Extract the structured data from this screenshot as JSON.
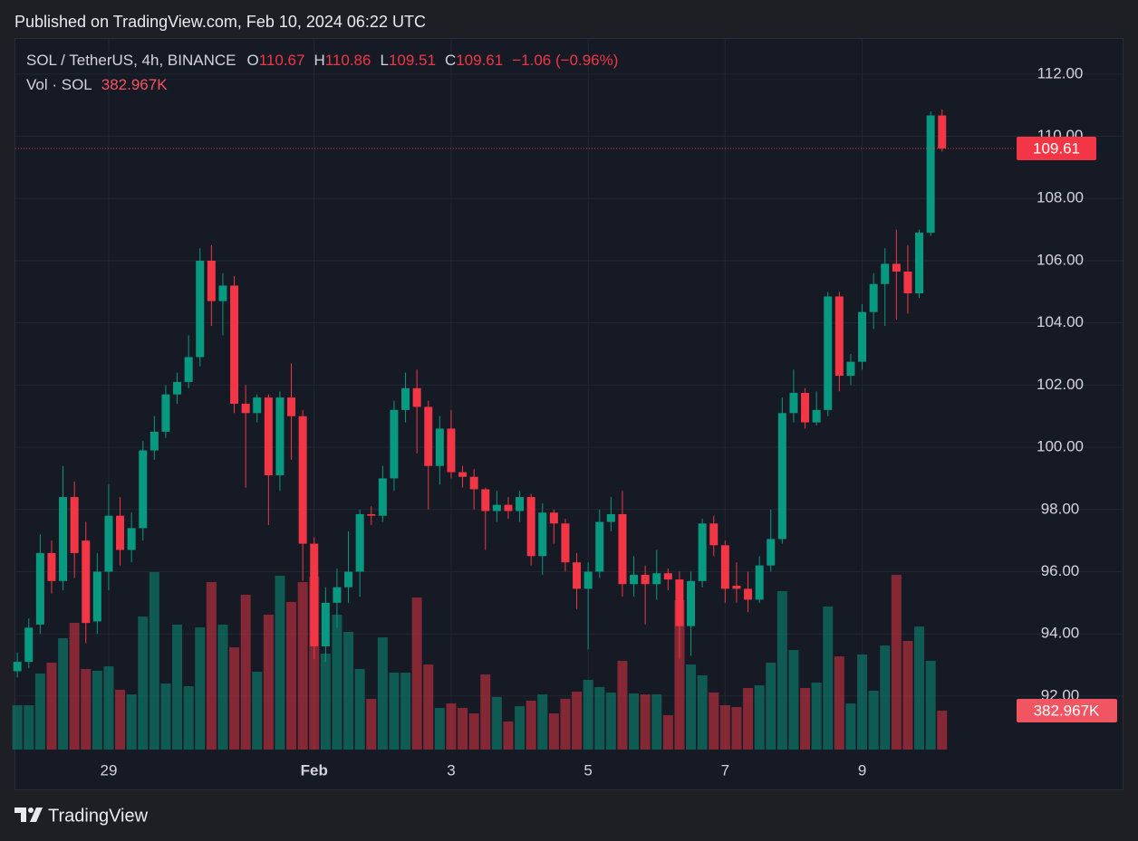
{
  "chart_data": {
    "type": "candlestick",
    "title": "Published on TradingView.com, Feb 10, 2024 06:22 UTC",
    "symbol": "SOL / TetherUS, 4h, BINANCE",
    "ohlc_labels": [
      "O",
      "H",
      "L",
      "C"
    ],
    "change_label": "−1.06 (−0.96%)",
    "volume_title": "Vol · SOL",
    "volume_last_label": "382.967K",
    "brand": "TradingView",
    "up_color": "#089981",
    "down_color": "#f23645",
    "grid": true,
    "ylim": [
      90.28,
      113.16
    ],
    "yticks": [
      {
        "value": 92,
        "label": "92.00"
      },
      {
        "value": 94,
        "label": "94.00"
      },
      {
        "value": 96,
        "label": "96.00"
      },
      {
        "value": 98,
        "label": "98.00"
      },
      {
        "value": 100,
        "label": "100.00"
      },
      {
        "value": 102,
        "label": "102.00"
      },
      {
        "value": 104,
        "label": "104.00"
      },
      {
        "value": 106,
        "label": "106.00"
      },
      {
        "value": 108,
        "label": "108.00"
      },
      {
        "value": 110,
        "label": "110.00"
      },
      {
        "value": 112,
        "label": "112.00"
      }
    ],
    "xlim": [
      -0.25,
      87.21
    ],
    "xticks": [
      {
        "value": 8,
        "label": "29"
      },
      {
        "value": 26,
        "label": "Feb"
      },
      {
        "value": 38,
        "label": "3"
      },
      {
        "value": 50,
        "label": "5"
      },
      {
        "value": 62,
        "label": "7"
      },
      {
        "value": 74,
        "label": "9"
      }
    ],
    "volume_lim": [
      0,
      7000000
    ],
    "open": [
      92.8,
      93.1,
      94.3,
      96.6,
      95.7,
      98.4,
      97.0,
      94.4,
      96.0,
      97.8,
      96.7,
      97.4,
      99.9,
      100.5,
      101.7,
      102.1,
      102.9,
      106.0,
      104.7,
      105.2,
      101.4,
      101.1,
      101.6,
      99.1,
      101.6,
      101.0,
      96.9,
      93.6,
      95.0,
      95.5,
      96.0,
      97.85,
      97.8,
      99.0,
      101.2,
      101.9,
      101.3,
      99.4,
      100.6,
      99.2,
      99.05,
      98.65,
      97.95,
      98.15,
      97.95,
      98.4,
      96.5,
      97.9,
      97.55,
      96.3,
      95.45,
      96.0,
      97.6,
      97.85,
      95.6,
      95.9,
      95.6,
      95.95,
      95.75,
      94.25,
      95.7,
      97.55,
      96.85,
      95.55,
      95.45,
      95.1,
      96.2,
      97.05,
      101.1,
      101.75,
      100.8,
      101.2,
      104.85,
      102.3,
      102.75,
      104.35,
      105.25,
      105.9,
      105.65,
      104.95,
      106.9,
      110.67
    ],
    "high": [
      93.4,
      94.5,
      97.2,
      97.0,
      99.4,
      98.9,
      97.6,
      96.6,
      98.8,
      98.4,
      97.9,
      100.2,
      101.0,
      102.0,
      102.4,
      103.6,
      106.4,
      106.5,
      105.6,
      105.5,
      102.0,
      101.7,
      101.7,
      101.8,
      102.7,
      101.2,
      97.1,
      95.5,
      96.1,
      97.3,
      98.0,
      98.1,
      99.4,
      101.5,
      102.4,
      102.5,
      101.5,
      101.0,
      101.2,
      99.4,
      99.3,
      98.7,
      98.6,
      98.4,
      98.6,
      98.5,
      98.2,
      98.0,
      97.7,
      96.6,
      96.3,
      98.0,
      98.4,
      98.6,
      96.5,
      96.2,
      96.7,
      96.1,
      96.0,
      96.0,
      97.7,
      97.8,
      97.0,
      96.3,
      96.0,
      96.5,
      98.0,
      101.6,
      102.5,
      101.9,
      101.8,
      105.0,
      105.0,
      103.0,
      104.6,
      105.6,
      106.4,
      107.0,
      106.5,
      107.0,
      110.8,
      110.86
    ],
    "low": [
      92.6,
      92.9,
      94.0,
      95.3,
      95.4,
      95.8,
      93.7,
      94.0,
      95.4,
      96.2,
      96.3,
      97.0,
      99.6,
      100.3,
      101.4,
      101.9,
      102.6,
      103.9,
      103.6,
      101.1,
      98.7,
      100.8,
      97.5,
      98.6,
      99.6,
      95.7,
      93.2,
      93.1,
      94.2,
      95.0,
      95.2,
      97.5,
      97.6,
      98.6,
      100.8,
      99.8,
      98.0,
      98.8,
      99.0,
      98.7,
      98.0,
      96.7,
      97.6,
      97.7,
      97.6,
      96.2,
      95.9,
      96.9,
      96.0,
      94.8,
      93.5,
      95.8,
      97.3,
      95.2,
      95.2,
      94.3,
      95.1,
      95.4,
      93.2,
      93.3,
      95.5,
      96.5,
      95.0,
      95.0,
      94.7,
      95.0,
      96.0,
      96.9,
      100.8,
      100.6,
      100.7,
      101.0,
      101.8,
      102.0,
      102.5,
      103.8,
      103.9,
      104.1,
      104.3,
      104.8,
      106.8,
      109.51
    ],
    "close": [
      93.1,
      94.2,
      96.6,
      95.7,
      98.4,
      96.6,
      94.35,
      96.0,
      97.8,
      96.7,
      97.4,
      99.9,
      100.5,
      101.7,
      102.1,
      102.9,
      106.0,
      104.7,
      105.2,
      101.4,
      101.1,
      101.6,
      99.1,
      101.6,
      101.0,
      96.9,
      93.6,
      95.0,
      95.5,
      96.0,
      97.85,
      97.8,
      99.0,
      101.2,
      101.9,
      101.3,
      99.4,
      100.6,
      99.2,
      99.05,
      98.65,
      97.95,
      98.15,
      97.95,
      98.4,
      96.5,
      97.9,
      97.55,
      96.3,
      95.45,
      96.0,
      97.6,
      97.85,
      95.6,
      95.9,
      95.6,
      95.95,
      95.75,
      94.25,
      95.7,
      97.55,
      96.85,
      95.45,
      95.45,
      95.1,
      96.2,
      97.05,
      101.1,
      101.75,
      100.8,
      101.2,
      104.85,
      102.3,
      102.75,
      104.35,
      105.25,
      105.9,
      105.65,
      104.95,
      106.9,
      110.67,
      109.61
    ],
    "volume": [
      436000,
      436000,
      748000,
      855000,
      1095000,
      1247000,
      793000,
      775000,
      819000,
      588000,
      543000,
      1309000,
      1746000,
      650000,
      1229000,
      623000,
      1202000,
      1648000,
      1229000,
      1006000,
      1523000,
      766000,
      1327000,
      1710000,
      1452000,
      1648000,
      1701000,
      944000,
      1327000,
      1158000,
      793000,
      499000,
      1104000,
      757000,
      757000,
      1496000,
      837000,
      410000,
      454000,
      410000,
      356000,
      739000,
      517000,
      276000,
      427000,
      481000,
      543000,
      356000,
      499000,
      570000,
      686000,
      615000,
      561000,
      873000,
      552000,
      543000,
      543000,
      338000,
      1469000,
      837000,
      730000,
      561000,
      436000,
      419000,
      606000,
      632000,
      855000,
      1559000,
      980000,
      606000,
      659000,
      1407000,
      917000,
      454000,
      935000,
      579000,
      1024000,
      1719000,
      1069000,
      1211000,
      873000,
      382967
    ]
  }
}
